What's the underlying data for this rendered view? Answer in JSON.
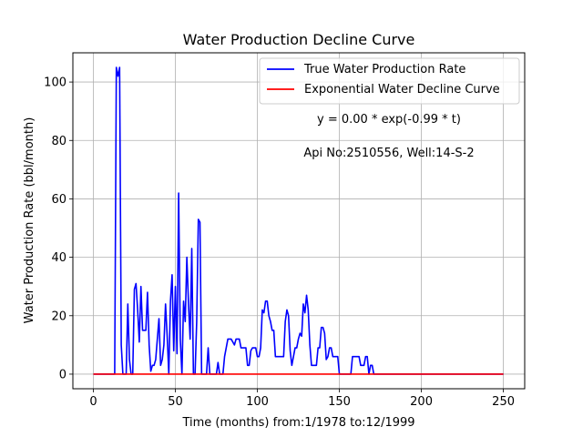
{
  "chart_data": {
    "type": "line",
    "title": "Water Production Decline Curve",
    "xlabel": "Time (months) from:1/1978 to:12/1999",
    "ylabel": "Water Production Rate (bbl/month)",
    "xlim": [
      -12.5,
      263
    ],
    "ylim": [
      -5,
      110
    ],
    "xticks": [
      0,
      50,
      100,
      150,
      200,
      250
    ],
    "yticks": [
      0,
      20,
      40,
      60,
      80,
      100
    ],
    "grid": true,
    "legend_position": "top-right",
    "annotations": [
      "y = 0.00 * exp(-0.99 * t)",
      "Api No:2510556, Well:14-S-2"
    ],
    "series": [
      {
        "name": "True Water Production Rate",
        "color": "#0000ff",
        "points": [
          [
            0,
            0
          ],
          [
            13,
            0
          ],
          [
            14,
            105
          ],
          [
            15,
            102
          ],
          [
            16,
            105
          ],
          [
            17,
            10
          ],
          [
            18,
            0
          ],
          [
            19,
            0
          ],
          [
            20,
            0
          ],
          [
            21,
            24
          ],
          [
            22,
            5
          ],
          [
            23,
            0
          ],
          [
            24,
            0
          ],
          [
            25,
            29
          ],
          [
            26,
            31
          ],
          [
            27,
            22
          ],
          [
            28,
            11
          ],
          [
            29,
            30
          ],
          [
            30,
            15
          ],
          [
            31,
            15
          ],
          [
            32,
            15
          ],
          [
            33,
            28
          ],
          [
            34,
            10
          ],
          [
            35,
            1
          ],
          [
            36,
            3
          ],
          [
            37,
            3
          ],
          [
            38,
            5
          ],
          [
            39,
            12
          ],
          [
            40,
            19
          ],
          [
            41,
            3
          ],
          [
            42,
            5
          ],
          [
            43,
            10
          ],
          [
            44,
            24
          ],
          [
            45,
            13
          ],
          [
            46,
            0
          ],
          [
            47,
            25
          ],
          [
            48,
            34
          ],
          [
            49,
            8
          ],
          [
            50,
            30
          ],
          [
            51,
            7
          ],
          [
            52,
            62
          ],
          [
            53,
            12
          ],
          [
            54,
            0
          ],
          [
            55,
            25
          ],
          [
            56,
            18
          ],
          [
            57,
            40
          ],
          [
            58,
            24
          ],
          [
            59,
            12
          ],
          [
            60,
            43
          ],
          [
            61,
            0
          ],
          [
            62,
            0
          ],
          [
            63,
            18
          ],
          [
            64,
            53
          ],
          [
            65,
            52
          ],
          [
            66,
            0
          ],
          [
            67,
            0
          ],
          [
            68,
            0
          ],
          [
            69,
            0
          ],
          [
            70,
            9
          ],
          [
            71,
            0
          ],
          [
            72,
            0
          ],
          [
            73,
            0
          ],
          [
            74,
            0
          ],
          [
            75,
            0
          ],
          [
            76,
            4
          ],
          [
            77,
            0
          ],
          [
            78,
            0
          ],
          [
            79,
            0
          ],
          [
            80,
            6
          ],
          [
            81,
            9
          ],
          [
            82,
            12
          ],
          [
            83,
            12
          ],
          [
            84,
            12
          ],
          [
            85,
            11
          ],
          [
            86,
            10
          ],
          [
            87,
            12
          ],
          [
            88,
            12
          ],
          [
            89,
            12
          ],
          [
            90,
            9
          ],
          [
            91,
            9
          ],
          [
            92,
            9
          ],
          [
            93,
            9
          ],
          [
            94,
            3
          ],
          [
            95,
            3
          ],
          [
            96,
            8
          ],
          [
            97,
            9
          ],
          [
            98,
            9
          ],
          [
            99,
            9
          ],
          [
            100,
            6
          ],
          [
            101,
            6
          ],
          [
            102,
            9
          ],
          [
            103,
            22
          ],
          [
            104,
            21
          ],
          [
            105,
            25
          ],
          [
            106,
            25
          ],
          [
            107,
            20
          ],
          [
            108,
            18
          ],
          [
            109,
            15
          ],
          [
            110,
            15
          ],
          [
            111,
            6
          ],
          [
            112,
            6
          ],
          [
            113,
            6
          ],
          [
            114,
            6
          ],
          [
            115,
            6
          ],
          [
            116,
            6
          ],
          [
            117,
            18
          ],
          [
            118,
            22
          ],
          [
            119,
            20
          ],
          [
            120,
            8
          ],
          [
            121,
            3
          ],
          [
            122,
            6
          ],
          [
            123,
            9
          ],
          [
            124,
            9
          ],
          [
            125,
            12
          ],
          [
            126,
            14
          ],
          [
            127,
            13
          ],
          [
            128,
            24
          ],
          [
            129,
            21
          ],
          [
            130,
            27
          ],
          [
            131,
            22
          ],
          [
            132,
            10
          ],
          [
            133,
            3
          ],
          [
            134,
            3
          ],
          [
            135,
            3
          ],
          [
            136,
            3
          ],
          [
            137,
            9
          ],
          [
            138,
            9
          ],
          [
            139,
            16
          ],
          [
            140,
            16
          ],
          [
            141,
            14
          ],
          [
            142,
            5
          ],
          [
            143,
            6
          ],
          [
            144,
            9
          ],
          [
            145,
            9
          ],
          [
            146,
            6
          ],
          [
            147,
            6
          ],
          [
            148,
            6
          ],
          [
            149,
            6
          ],
          [
            150,
            0
          ],
          [
            151,
            0
          ],
          [
            152,
            0
          ],
          [
            153,
            0
          ],
          [
            154,
            0
          ],
          [
            155,
            0
          ],
          [
            156,
            0
          ],
          [
            157,
            0
          ],
          [
            158,
            6
          ],
          [
            159,
            6
          ],
          [
            160,
            6
          ],
          [
            161,
            6
          ],
          [
            162,
            6
          ],
          [
            163,
            3
          ],
          [
            164,
            3
          ],
          [
            165,
            3
          ],
          [
            166,
            6
          ],
          [
            167,
            6
          ],
          [
            168,
            0
          ],
          [
            169,
            3
          ],
          [
            170,
            3
          ],
          [
            171,
            0
          ],
          [
            172,
            0
          ],
          [
            250,
            0
          ]
        ]
      },
      {
        "name": "Exponential Water Decline Curve",
        "color": "#ff0000",
        "points": [
          [
            0,
            0
          ],
          [
            250,
            0
          ]
        ]
      }
    ]
  }
}
